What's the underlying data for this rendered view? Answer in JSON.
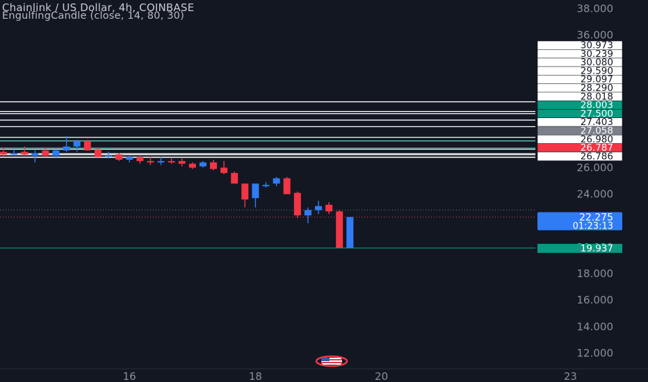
{
  "header": {
    "title": "Chainlink / US Dollar, 4h, COINBASE",
    "indicator": "EngulfingCandle (close, 14, 80, 30)"
  },
  "colors": {
    "background": "#131722",
    "up": "#2f7cf5",
    "down": "#f23645",
    "teal": "#089981",
    "gray_label": "#7b7f8a",
    "level_line": "#ffffff",
    "axis_text": "#8b8f99"
  },
  "flag_icon": "us-flag-icon",
  "chart_data": {
    "type": "candlestick",
    "title": "Chainlink / US Dollar, 4h, COINBASE",
    "ylim": [
      11.5,
      38.5
    ],
    "y_ticks": [
      "12.000",
      "14.000",
      "16.000",
      "18.000",
      "20.000",
      "22.000",
      "24.000",
      "26.000",
      "28.000",
      "30.000",
      "32.000",
      "34.000",
      "36.000",
      "38.000"
    ],
    "x_ticks": [
      {
        "label": "16",
        "x": 12
      },
      {
        "label": "18",
        "x": 24
      },
      {
        "label": "20",
        "x": 36
      },
      {
        "label": "23",
        "x": 54
      }
    ],
    "candles": [
      {
        "x": 0,
        "o": 27.2,
        "h": 27.5,
        "l": 26.8,
        "c": 27.0
      },
      {
        "x": 1,
        "o": 27.0,
        "h": 27.4,
        "l": 26.9,
        "c": 27.1
      },
      {
        "x": 2,
        "o": 27.2,
        "h": 27.6,
        "l": 26.9,
        "c": 27.0
      },
      {
        "x": 3,
        "o": 26.9,
        "h": 27.3,
        "l": 26.4,
        "c": 27.1
      },
      {
        "x": 4,
        "o": 27.3,
        "h": 27.5,
        "l": 26.8,
        "c": 26.9
      },
      {
        "x": 5,
        "o": 26.9,
        "h": 27.4,
        "l": 26.7,
        "c": 27.3
      },
      {
        "x": 6,
        "o": 27.3,
        "h": 28.4,
        "l": 27.2,
        "c": 27.6
      },
      {
        "x": 7,
        "o": 27.6,
        "h": 28.1,
        "l": 27.2,
        "c": 28.0
      },
      {
        "x": 8,
        "o": 28.0,
        "h": 28.1,
        "l": 27.3,
        "c": 27.3
      },
      {
        "x": 9,
        "o": 27.4,
        "h": 27.5,
        "l": 26.8,
        "c": 26.8
      },
      {
        "x": 10,
        "o": 26.9,
        "h": 27.2,
        "l": 26.7,
        "c": 26.9
      },
      {
        "x": 11,
        "o": 27.0,
        "h": 27.1,
        "l": 26.5,
        "c": 26.6
      },
      {
        "x": 12,
        "o": 26.6,
        "h": 26.9,
        "l": 26.4,
        "c": 26.8
      },
      {
        "x": 13,
        "o": 26.8,
        "h": 26.9,
        "l": 26.3,
        "c": 26.5
      },
      {
        "x": 14,
        "o": 26.5,
        "h": 26.8,
        "l": 26.2,
        "c": 26.4
      },
      {
        "x": 15,
        "o": 26.4,
        "h": 26.8,
        "l": 26.2,
        "c": 26.5
      },
      {
        "x": 16,
        "o": 26.5,
        "h": 26.7,
        "l": 26.3,
        "c": 26.4
      },
      {
        "x": 17,
        "o": 26.5,
        "h": 26.7,
        "l": 26.1,
        "c": 26.3
      },
      {
        "x": 18,
        "o": 26.3,
        "h": 26.4,
        "l": 25.9,
        "c": 26.0
      },
      {
        "x": 19,
        "o": 26.1,
        "h": 26.5,
        "l": 26.0,
        "c": 26.4
      },
      {
        "x": 20,
        "o": 26.4,
        "h": 26.6,
        "l": 25.8,
        "c": 25.9
      },
      {
        "x": 21,
        "o": 26.0,
        "h": 26.5,
        "l": 25.5,
        "c": 25.6
      },
      {
        "x": 22,
        "o": 25.6,
        "h": 25.7,
        "l": 24.8,
        "c": 24.8
      },
      {
        "x": 23,
        "o": 24.8,
        "h": 24.8,
        "l": 23.0,
        "c": 23.6
      },
      {
        "x": 24,
        "o": 23.7,
        "h": 24.7,
        "l": 23.0,
        "c": 24.8
      },
      {
        "x": 25,
        "o": 24.6,
        "h": 24.9,
        "l": 24.5,
        "c": 24.7
      },
      {
        "x": 26,
        "o": 24.8,
        "h": 25.3,
        "l": 24.6,
        "c": 25.2
      },
      {
        "x": 27,
        "o": 25.2,
        "h": 25.3,
        "l": 24.0,
        "c": 24.0
      },
      {
        "x": 28,
        "o": 24.1,
        "h": 24.2,
        "l": 22.2,
        "c": 22.4
      },
      {
        "x": 29,
        "o": 22.4,
        "h": 23.0,
        "l": 21.8,
        "c": 22.8
      },
      {
        "x": 30,
        "o": 22.8,
        "h": 23.5,
        "l": 22.5,
        "c": 23.1
      },
      {
        "x": 31,
        "o": 23.2,
        "h": 23.4,
        "l": 22.5,
        "c": 22.7
      },
      {
        "x": 32,
        "o": 22.7,
        "h": 22.8,
        "l": 19.937,
        "c": 19.937
      },
      {
        "x": 33,
        "o": 19.937,
        "h": 22.275,
        "l": 19.937,
        "c": 22.275
      }
    ],
    "levels": [
      {
        "value": 30.973,
        "label": "30.973",
        "style": "white"
      },
      {
        "value": 30.239,
        "label": "30.239",
        "style": "white"
      },
      {
        "value": 30.08,
        "label": "30.080",
        "style": "white"
      },
      {
        "value": 29.59,
        "label": "29.590",
        "style": "white"
      },
      {
        "value": 29.097,
        "label": "29.097",
        "style": "white"
      },
      {
        "value": 28.29,
        "label": "28.290",
        "style": "white"
      },
      {
        "value": 28.018,
        "label": "28.018",
        "style": "white"
      },
      {
        "value": 28.003,
        "label": "28.003",
        "style": "teal"
      },
      {
        "value": 27.5,
        "label": "27.500",
        "style": "teal"
      },
      {
        "value": 27.403,
        "label": "27.403",
        "style": "white"
      },
      {
        "value": 27.058,
        "label": "27.058",
        "style": "gray"
      },
      {
        "value": 26.98,
        "label": "26.980",
        "style": "white"
      },
      {
        "value": 26.787,
        "label": "26.787",
        "style": "red"
      },
      {
        "value": 26.786,
        "label": "26.786",
        "style": "white"
      }
    ],
    "current_price": {
      "value": 22.275,
      "label": "22.275",
      "countdown": "01:23:13"
    },
    "low_price": {
      "value": 19.937,
      "label": "19.937"
    }
  }
}
